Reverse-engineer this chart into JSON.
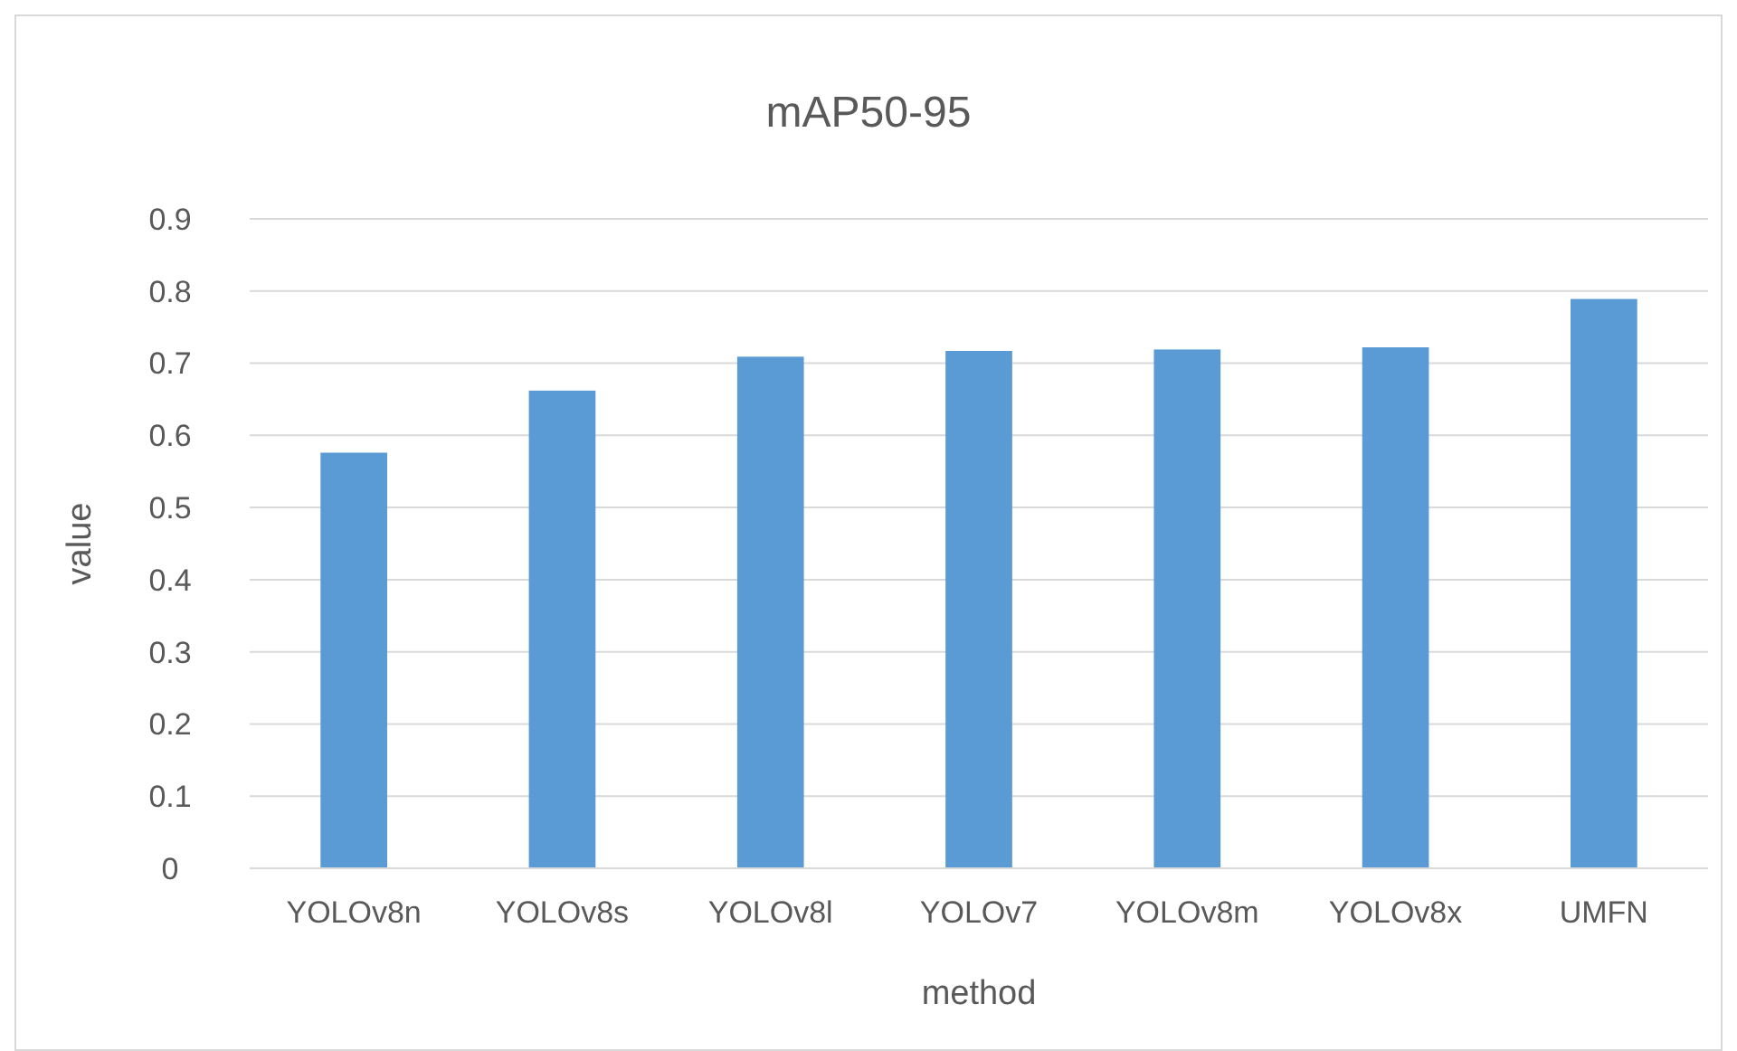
{
  "chart_data": {
    "type": "bar",
    "title": "mAP50-95",
    "xlabel": "method",
    "ylabel": "value",
    "categories": [
      "YOLOv8n",
      "YOLOv8s",
      "YOLOv8l",
      "YOLOv7",
      "YOLOv8m",
      "YOLOv8x",
      "UMFN"
    ],
    "values": [
      0.576,
      0.662,
      0.709,
      0.717,
      0.719,
      0.722,
      0.789
    ],
    "color": "#5b9bd5",
    "ylim": [
      0,
      0.9
    ],
    "yticks": [
      0,
      0.1,
      0.2,
      0.3,
      0.4,
      0.5,
      0.6,
      0.7,
      0.8,
      0.9
    ],
    "grid": "y"
  }
}
